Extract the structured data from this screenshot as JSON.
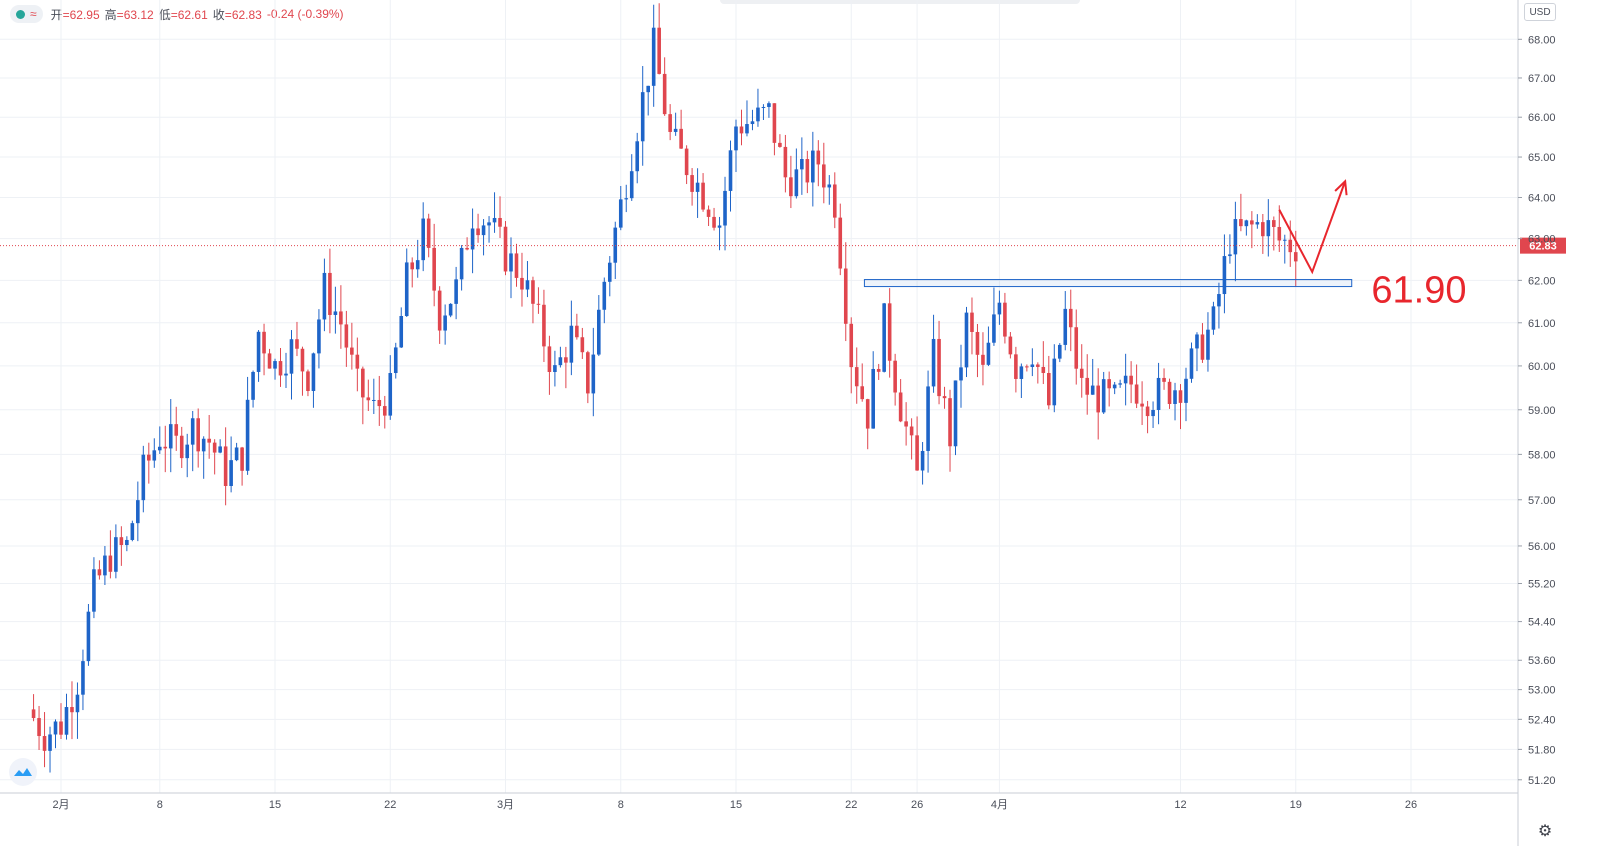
{
  "legend": {
    "open_label": "开",
    "open": "62.95",
    "high_label": "高",
    "high": "63.12",
    "low_label": "低",
    "low": "62.61",
    "close_label": "收",
    "close": "62.83",
    "change": "-0.24 (-0.39%)"
  },
  "currency": "USD",
  "colors": {
    "up": "#1e64c8",
    "down": "#e0464e",
    "annotation": "#e8262d",
    "grid": "#eef1f5"
  },
  "chart_data": {
    "type": "candlestick",
    "y_scale": "log",
    "ylim": [
      51.0,
      68.4
    ],
    "yticks": [
      "68.00",
      "67.00",
      "66.00",
      "65.00",
      "64.00",
      "63.00",
      "62.00",
      "61.00",
      "60.00",
      "59.00",
      "58.00",
      "57.00",
      "56.00",
      "55.20",
      "54.40",
      "53.60",
      "53.00",
      "52.40",
      "51.80",
      "51.20"
    ],
    "xticks": [
      {
        "label": "2月",
        "day": 2
      },
      {
        "label": "8",
        "day": 8
      },
      {
        "label": "15",
        "day": 15
      },
      {
        "label": "22",
        "day": 22
      },
      {
        "label": "3月",
        "day": 29
      },
      {
        "label": "8",
        "day": 36
      },
      {
        "label": "15",
        "day": 43
      },
      {
        "label": "22",
        "day": 50
      },
      {
        "label": "26",
        "day": 54
      },
      {
        "label": "4月",
        "day": 59
      },
      {
        "label": "12",
        "day": 70
      },
      {
        "label": "19",
        "day": 77
      },
      {
        "label": "26",
        "day": 84
      }
    ],
    "last_price": 62.83,
    "last_price_label": "62.83",
    "anchors": [
      [
        0,
        52.6
      ],
      [
        1,
        52.1
      ],
      [
        2,
        52.3
      ],
      [
        3,
        53.2
      ],
      [
        4,
        55.1
      ],
      [
        5,
        55.8
      ],
      [
        6,
        56.0
      ],
      [
        7,
        57.6
      ],
      [
        8,
        58.4
      ],
      [
        9,
        58.2
      ],
      [
        10,
        58.6
      ],
      [
        11,
        58.3
      ],
      [
        12,
        57.6
      ],
      [
        13,
        58.0
      ],
      [
        14,
        60.8
      ],
      [
        15,
        60.0
      ],
      [
        16,
        60.4
      ],
      [
        17,
        59.8
      ],
      [
        18,
        61.8
      ],
      [
        19,
        61.0
      ],
      [
        20,
        59.5
      ],
      [
        21,
        59.0
      ],
      [
        22,
        59.4
      ],
      [
        23,
        62.0
      ],
      [
        24,
        63.1
      ],
      [
        25,
        61.2
      ],
      [
        26,
        61.8
      ],
      [
        27,
        63.6
      ],
      [
        28,
        63.4
      ],
      [
        29,
        62.6
      ],
      [
        30,
        62.1
      ],
      [
        31,
        61.0
      ],
      [
        32,
        59.8
      ],
      [
        33,
        60.7
      ],
      [
        34,
        59.6
      ],
      [
        35,
        62.0
      ],
      [
        36,
        63.8
      ],
      [
        37,
        65.8
      ],
      [
        38,
        67.8
      ],
      [
        39,
        65.5
      ],
      [
        40,
        64.8
      ],
      [
        41,
        64.1
      ],
      [
        42,
        63.4
      ],
      [
        43,
        65.8
      ],
      [
        44,
        65.9
      ],
      [
        45,
        66.1
      ],
      [
        46,
        64.5
      ],
      [
        47,
        64.5
      ],
      [
        48,
        64.9
      ],
      [
        49,
        63.9
      ],
      [
        50,
        60.2
      ],
      [
        51,
        58.9
      ],
      [
        52,
        61.0
      ],
      [
        53,
        59.1
      ],
      [
        54,
        57.5
      ],
      [
        55,
        60.2
      ],
      [
        56,
        58.4
      ],
      [
        57,
        61.0
      ],
      [
        58,
        59.8
      ],
      [
        59,
        61.5
      ],
      [
        60,
        60.0
      ],
      [
        61,
        60.4
      ],
      [
        62,
        59.1
      ],
      [
        63,
        61.2
      ],
      [
        64,
        59.5
      ],
      [
        65,
        59.3
      ],
      [
        66,
        59.2
      ],
      [
        67,
        59.6
      ],
      [
        68,
        59.3
      ],
      [
        69,
        59.4
      ],
      [
        70,
        59.6
      ],
      [
        71,
        60.3
      ],
      [
        72,
        61.0
      ],
      [
        73,
        63.0
      ],
      [
        74,
        63.2
      ],
      [
        75,
        63.4
      ],
      [
        76,
        62.95
      ],
      [
        77,
        62.83
      ]
    ],
    "support_level": 61.9,
    "support_label": "61.90",
    "annotation_path": [
      [
        76,
        63.7
      ],
      [
        78,
        62.2
      ],
      [
        80,
        64.4
      ]
    ]
  }
}
